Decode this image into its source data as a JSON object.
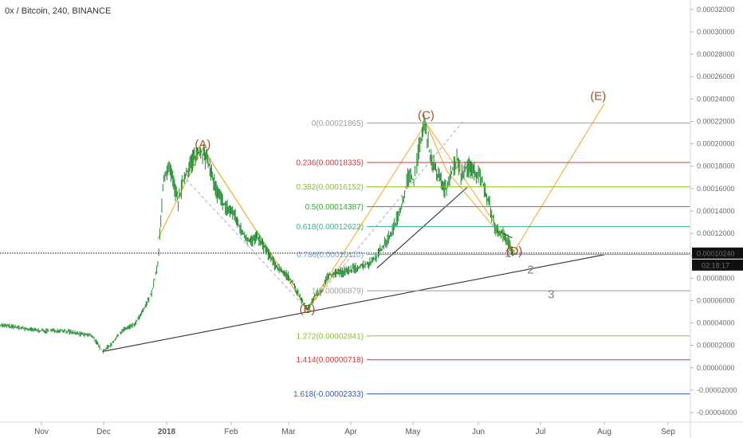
{
  "title": "0x / Bitcoin, 240, BINANCE",
  "chart_data": {
    "type": "line",
    "title": "0x / Bitcoin, 240, BINANCE",
    "xlabel": "",
    "ylabel": "",
    "x_ticks": [
      "Nov",
      "Dec",
      "2018",
      "Feb",
      "Mar",
      "Apr",
      "May",
      "Jun",
      "Jul",
      "Aug",
      "Sep"
    ],
    "y_ticks": [
      "0.00032000",
      "0.00030000",
      "0.00028000",
      "0.00026000",
      "0.00024000",
      "0.00022000",
      "0.00020000",
      "0.00018000",
      "0.00016000",
      "0.00014000",
      "0.00012000",
      "0.00010000",
      "0.00008000",
      "0.00006000",
      "0.00004000",
      "0.00002000",
      "0.00000000",
      "-0.00002000",
      "-0.00004000"
    ],
    "ylim": [
      -4.85e-05,
      0.000327
    ],
    "xlim": [
      "2017-10-21",
      "2018-09-23"
    ],
    "grid": false,
    "last_price": {
      "value": 0.0001024,
      "label": "0.00010240",
      "countdown": "02:18:17"
    },
    "series": [
      {
        "price_path": [
          [
            "2017-10-21",
            3.82e-05
          ],
          [
            "2017-10-28",
            3.65e-05
          ],
          [
            "2017-11-04",
            3.42e-05
          ],
          [
            "2017-11-12",
            3.28e-05
          ],
          [
            "2017-11-20",
            3.36e-05
          ],
          [
            "2017-11-28",
            3.05e-05
          ],
          [
            "2017-12-05",
            2.86e-05
          ],
          [
            "2017-12-10",
            1.45e-05
          ],
          [
            "2017-12-14",
            2.05e-05
          ],
          [
            "2017-12-20",
            3.38e-05
          ],
          [
            "2017-12-26",
            3.92e-05
          ],
          [
            "2017-12-30",
            5.12e-05
          ],
          [
            "2018-01-03",
            6.68e-05
          ],
          [
            "2018-01-06",
            9.1e-05
          ],
          [
            "2018-01-09",
            0.000172
          ],
          [
            "2018-01-12",
            0.000176
          ],
          [
            "2018-01-16",
            0.000148
          ],
          [
            "2018-01-19",
            0.00017
          ],
          [
            "2018-01-23",
            0.000186
          ],
          [
            "2018-01-27",
            0.000194
          ],
          [
            "2018-01-31",
            0.000182
          ],
          [
            "2018-02-04",
            0.000156
          ],
          [
            "2018-02-08",
            0.000144
          ],
          [
            "2018-02-12",
            0.000138
          ],
          [
            "2018-02-16",
            0.000121
          ],
          [
            "2018-02-20",
            0.000113
          ],
          [
            "2018-02-24",
            0.000116
          ],
          [
            "2018-02-28",
            0.000105
          ],
          [
            "2018-03-04",
            9.2e-05
          ],
          [
            "2018-03-08",
            8.6e-05
          ],
          [
            "2018-03-12",
            7.9e-05
          ],
          [
            "2018-03-16",
            6.4e-05
          ],
          [
            "2018-03-20",
            5.2e-05
          ],
          [
            "2018-03-24",
            6.5e-05
          ],
          [
            "2018-03-27",
            6.8e-05
          ],
          [
            "2018-03-30",
            8.2e-05
          ],
          [
            "2018-04-03",
            8.5e-05
          ],
          [
            "2018-04-08",
            8.6e-05
          ],
          [
            "2018-04-14",
            9e-05
          ],
          [
            "2018-04-20",
            9.4e-05
          ],
          [
            "2018-04-25",
            0.000105
          ],
          [
            "2018-04-30",
            0.00012
          ],
          [
            "2018-05-03",
            0.000134
          ],
          [
            "2018-05-06",
            0.000152
          ],
          [
            "2018-05-08",
            0.00017
          ],
          [
            "2018-05-11",
            0.000168
          ],
          [
            "2018-05-14",
            0.0002
          ],
          [
            "2018-05-16",
            0.000218
          ],
          [
            "2018-05-19",
            0.00019
          ],
          [
            "2018-05-23",
            0.00017
          ],
          [
            "2018-05-27",
            0.000158
          ],
          [
            "2018-05-29",
            0.000172
          ],
          [
            "2018-06-01",
            0.000186
          ],
          [
            "2018-06-03",
            0.000172
          ],
          [
            "2018-06-06",
            0.00018
          ],
          [
            "2018-06-10",
            0.000174
          ],
          [
            "2018-06-13",
            0.00017
          ],
          [
            "2018-06-17",
            0.000145
          ],
          [
            "2018-06-20",
            0.000123
          ],
          [
            "2018-06-23",
            0.00012
          ],
          [
            "2018-06-26",
            0.000113
          ],
          [
            "2018-06-29",
            0.0001024
          ]
        ]
      }
    ],
    "fib_levels": [
      {
        "text": "0(0.00021865)",
        "value": 0.00021865,
        "color": "#9e9e9e"
      },
      {
        "text": "0.236(0.00018335)",
        "value": 0.00018335,
        "color": "#cc3b3b"
      },
      {
        "text": "0.382(0.00016152)",
        "value": 0.00016152,
        "color": "#8bbf2a"
      },
      {
        "text": "0.5(0.00014387)",
        "value": 0.00014387,
        "color": "#3aa53a"
      },
      {
        "text": "0.618(0.00012622)",
        "value": 0.00012622,
        "color": "#35b58c"
      },
      {
        "text": "0.786(0.00010110)",
        "value": 0.0001011,
        "color": "#7a9cc8"
      },
      {
        "text": "1(0.00006879)",
        "value": 6.879e-05,
        "color": "#9e9e9e"
      },
      {
        "text": "1.272(0.00002841)",
        "value": 2.841e-05,
        "color": "#8bbf2a"
      },
      {
        "text": "1.414(0.00000718)",
        "value": 7.18e-06,
        "color": "#cc3b3b"
      },
      {
        "text": "1.618(-0.00002333)",
        "value": -2.333e-05,
        "color": "#3c59b4"
      }
    ],
    "fib_range": [
      "2018-04-18",
      "2018-09-23"
    ],
    "annotations": [
      {
        "text": "(A)",
        "x": "2018-01-28",
        "y": 0.000196,
        "color": "#a0522d"
      },
      {
        "text": "(B)",
        "x": "2018-03-20",
        "y": 4.9e-05,
        "color": "#a0522d"
      },
      {
        "text": "(C)",
        "x": "2018-05-17",
        "y": 0.000222,
        "color": "#a0522d"
      },
      {
        "text": "(D)",
        "x": "2018-06-29",
        "y": 0.000101,
        "color": "#a0522d"
      },
      {
        "text": "(E)",
        "x": "2018-08-09",
        "y": 0.000239,
        "color": "#a0522d"
      },
      {
        "text": "1",
        "x": "2018-06-26",
        "y": 9.9e-05,
        "color": "#808080"
      },
      {
        "text": "2",
        "x": "2018-07-07",
        "y": 8.4e-05,
        "color": "#808080"
      },
      {
        "text": "3",
        "x": "2018-07-17",
        "y": 6.2e-05,
        "color": "#808080"
      }
    ],
    "drawings": [
      {
        "kind": "trendline",
        "color": "#333333",
        "points": [
          [
            "2017-12-10",
            1.45e-05
          ],
          [
            "2018-08-12",
            0.000101
          ]
        ]
      },
      {
        "kind": "trendline",
        "color": "#333333",
        "points": [
          [
            "2018-04-23",
            8.9e-05
          ],
          [
            "2018-06-06",
            0.000161
          ]
        ]
      },
      {
        "kind": "trendline",
        "color": "#333333",
        "points": [
          [
            "2018-06-20",
            0.000123
          ],
          [
            "2018-06-28",
            0.000116
          ]
        ]
      },
      {
        "kind": "zigzag",
        "color": "#f5a623",
        "points": [
          [
            "2018-01-06",
            0.000115
          ],
          [
            "2018-01-28",
            0.000196
          ],
          [
            "2018-03-20",
            5.2e-05
          ],
          [
            "2018-05-17",
            0.0002185
          ],
          [
            "2018-06-29",
            0.000104
          ],
          [
            "2018-08-12",
            0.000236
          ]
        ]
      },
      {
        "kind": "zigzag",
        "color": "#f5a623",
        "points": [
          [
            "2018-01-28",
            0.000196
          ],
          [
            "2018-03-20",
            5.2e-05
          ],
          [
            "2018-04-10",
            0.000103
          ]
        ]
      },
      {
        "kind": "zigzag",
        "color": "#f5a623",
        "points": [
          [
            "2018-05-17",
            0.0002185
          ],
          [
            "2018-05-27",
            0.000176
          ],
          [
            "2018-06-29",
            0.000104
          ]
        ]
      },
      {
        "kind": "dashed",
        "color": "#b0b0b0",
        "points": [
          [
            "2018-01-20",
            0.000168
          ],
          [
            "2018-03-20",
            5.2e-05
          ],
          [
            "2018-06-04",
            0.00022
          ]
        ]
      }
    ]
  }
}
